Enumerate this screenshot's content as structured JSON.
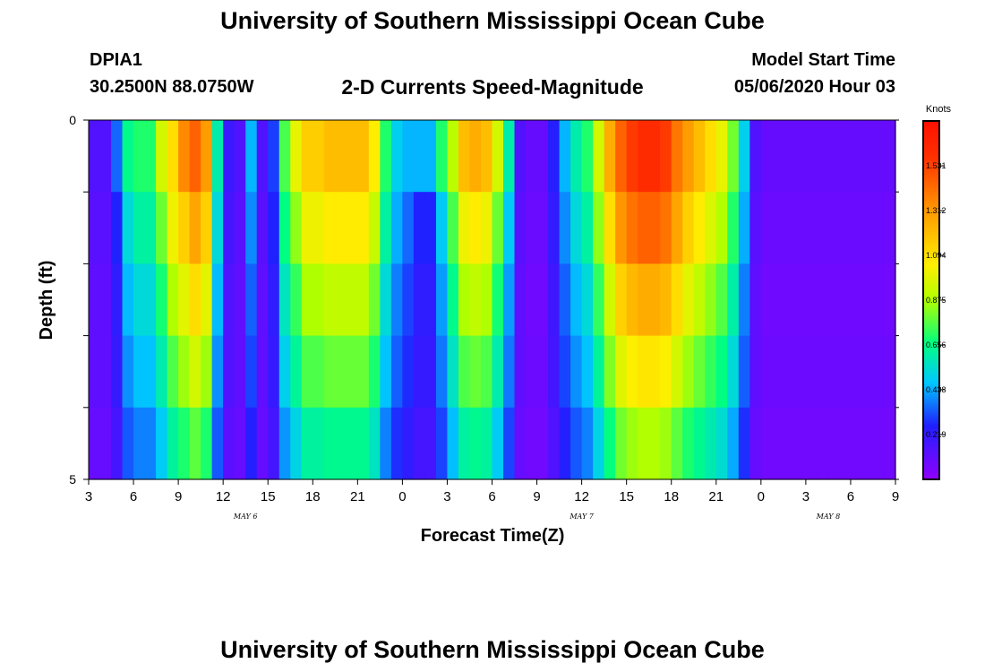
{
  "page": {
    "title_top": "University of Southern Mississippi Ocean Cube",
    "title_bottom": "University of Southern Mississippi Ocean Cube",
    "station_id": "DPIA1",
    "station_coords": "30.2500N 88.0750W",
    "plot_title": "2-D Currents Speed-Magnitude",
    "model_start_label": "Model Start Time",
    "model_start_value": "05/06/2020 Hour 03"
  },
  "chart_data": {
    "type": "heatmap",
    "title": "2-D Currents Speed-Magnitude",
    "xlabel": "Forecast Time(Z)",
    "ylabel": "Depth (ft)",
    "ylim": [
      0,
      5
    ],
    "y_ticks": [
      "0",
      "5"
    ],
    "x_range_hours": [
      0,
      54
    ],
    "x_ticks": [
      {
        "h": 0,
        "label": "3"
      },
      {
        "h": 3,
        "label": "6"
      },
      {
        "h": 6,
        "label": "9"
      },
      {
        "h": 9,
        "label": "12"
      },
      {
        "h": 12,
        "label": "15"
      },
      {
        "h": 15,
        "label": "18"
      },
      {
        "h": 18,
        "label": "21"
      },
      {
        "h": 21,
        "label": "0"
      },
      {
        "h": 24,
        "label": "3"
      },
      {
        "h": 27,
        "label": "6"
      },
      {
        "h": 30,
        "label": "9"
      },
      {
        "h": 33,
        "label": "12"
      },
      {
        "h": 36,
        "label": "15"
      },
      {
        "h": 39,
        "label": "18"
      },
      {
        "h": 42,
        "label": "21"
      },
      {
        "h": 45,
        "label": "0"
      },
      {
        "h": 48,
        "label": "3"
      },
      {
        "h": 51,
        "label": "6"
      },
      {
        "h": 54,
        "label": "9"
      }
    ],
    "date_labels": [
      {
        "h": 10.5,
        "label": "MAY 6"
      },
      {
        "h": 33,
        "label": "MAY 7"
      },
      {
        "h": 49.5,
        "label": "MAY 8"
      }
    ],
    "depth_bins": 5,
    "colorbar": {
      "title": "Knots",
      "min": 0,
      "max": 1.75,
      "ticks": [
        0.219,
        0.438,
        0.656,
        0.875,
        1.094,
        1.312,
        1.531
      ]
    },
    "note_rows": "rows from surface (top) to bottom; row 0 is top half-bin",
    "rows": [
      [
        0.15,
        0.15,
        0.35,
        0.65,
        0.7,
        0.7,
        0.95,
        1.1,
        1.35,
        1.45,
        1.3,
        0.6,
        0.2,
        0.15,
        0.45,
        0.15,
        0.3,
        0.75,
        1.0,
        1.15,
        1.15,
        1.2,
        1.2,
        1.2,
        1.2,
        1.05,
        0.7,
        0.5,
        0.45,
        0.45,
        0.45,
        0.7,
        0.9,
        1.2,
        1.25,
        1.2,
        0.95,
        0.6,
        0.15,
        0.1,
        0.1,
        0.25,
        0.45,
        0.6,
        0.7,
        0.95,
        1.25,
        1.45,
        1.55,
        1.6,
        1.6,
        1.55,
        1.4,
        1.3,
        1.2,
        1.1,
        1.0,
        0.8,
        0.5,
        0.15,
        0.1,
        0.1,
        0.1,
        0.1,
        0.1,
        0.1,
        0.1,
        0.1,
        0.1,
        0.1,
        0.1,
        0.1
      ],
      [
        0.15,
        0.15,
        0.3,
        0.6,
        0.7,
        0.7,
        0.9,
        1.15,
        1.3,
        1.45,
        1.3,
        0.6,
        0.2,
        0.15,
        0.45,
        0.15,
        0.3,
        0.75,
        0.95,
        1.15,
        1.15,
        1.2,
        1.2,
        1.2,
        1.2,
        1.05,
        0.7,
        0.5,
        0.4,
        0.3,
        0.3,
        0.55,
        0.85,
        1.15,
        1.2,
        1.15,
        0.9,
        0.55,
        0.15,
        0.1,
        0.1,
        0.25,
        0.45,
        0.6,
        0.7,
        0.95,
        1.25,
        1.5,
        1.6,
        1.65,
        1.65,
        1.6,
        1.45,
        1.3,
        1.2,
        1.1,
        1.0,
        0.8,
        0.5,
        0.15,
        0.1,
        0.1,
        0.1,
        0.1,
        0.1,
        0.1,
        0.1,
        0.1,
        0.1,
        0.1,
        0.1,
        0.1
      ]
    ]
  }
}
